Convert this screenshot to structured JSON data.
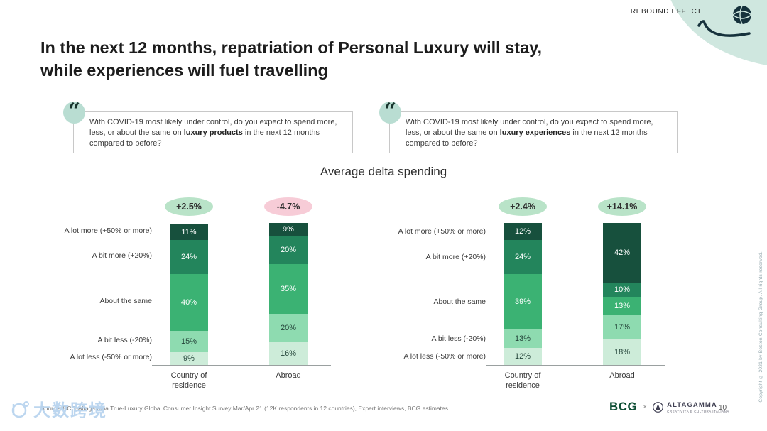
{
  "header": {
    "tag": "REBOUND EFFECT",
    "title_line1": "In the next 12 months, repatriation of Personal Luxury will stay,",
    "title_line2": "while experiences will fuel travelling"
  },
  "quotes": [
    {
      "text_before": "With COVID-19 most likely under control, do you expect to spend more, less, or about the same on ",
      "bold": "luxury products",
      "text_after": " in the next 12 months compared to before?",
      "icon_glyph": "“"
    },
    {
      "text_before": "With COVID-19 most likely under control, do you expect to spend more, less, or about the same on ",
      "bold": "luxury experiences",
      "text_after": " in the next 12 months compared to before?",
      "icon_glyph": "“"
    }
  ],
  "chart_data": {
    "type": "bar",
    "variant": "stacked-vertical",
    "title": "Average delta spending",
    "unit": "%",
    "categories": [
      "A lot more (+50% or more)",
      "A bit more (+20%)",
      "About the same",
      "A bit less (-20%)",
      "A lot less (-50% or more)"
    ],
    "segment_colors": [
      "#17503d",
      "#23855c",
      "#3bb273",
      "#8edbb0",
      "#cdecd9"
    ],
    "segment_text_colors": [
      "#ffffff",
      "#ffffff",
      "#ffffff",
      "#24453a",
      "#24453a"
    ],
    "badge_colors": {
      "positive": "#b9e3c8",
      "negative": "#f7ccd7"
    },
    "axis_range": [
      0,
      100
    ],
    "legend_position": "left-inline-labels",
    "groups": [
      {
        "name": "luxury products",
        "bars": [
          {
            "label": "Country of residence",
            "delta": "+2.5%",
            "sentiment": "positive",
            "values": [
              11,
              24,
              40,
              15,
              9
            ]
          },
          {
            "label": "Abroad",
            "delta": "-4.7%",
            "sentiment": "negative",
            "values": [
              9,
              20,
              35,
              20,
              16
            ]
          }
        ]
      },
      {
        "name": "luxury experiences",
        "bars": [
          {
            "label": "Country of residence",
            "delta": "+2.4%",
            "sentiment": "positive",
            "values": [
              12,
              24,
              39,
              13,
              12
            ]
          },
          {
            "label": "Abroad",
            "delta": "+14.1%",
            "sentiment": "positive",
            "values": [
              42,
              10,
              13,
              17,
              18
            ]
          }
        ]
      }
    ]
  },
  "footer": {
    "source": "Source: BCG-Altagamma True-Luxury Global Consumer Insight Survey Mar/Apr 21 (12K respondents in 12 countries), Expert interviews, BCG estimates",
    "bcg_logo": "BCG",
    "logo_separator": "×",
    "altagamma_logo": "ALTAGAMMA",
    "altagamma_tagline": "CREATIVITÀ E CULTURA ITALIANA",
    "page_number": "10"
  },
  "copyright": "Copyright © 2021 by Boston Consulting Group. All rights reserved.",
  "watermark": "大数跨境"
}
